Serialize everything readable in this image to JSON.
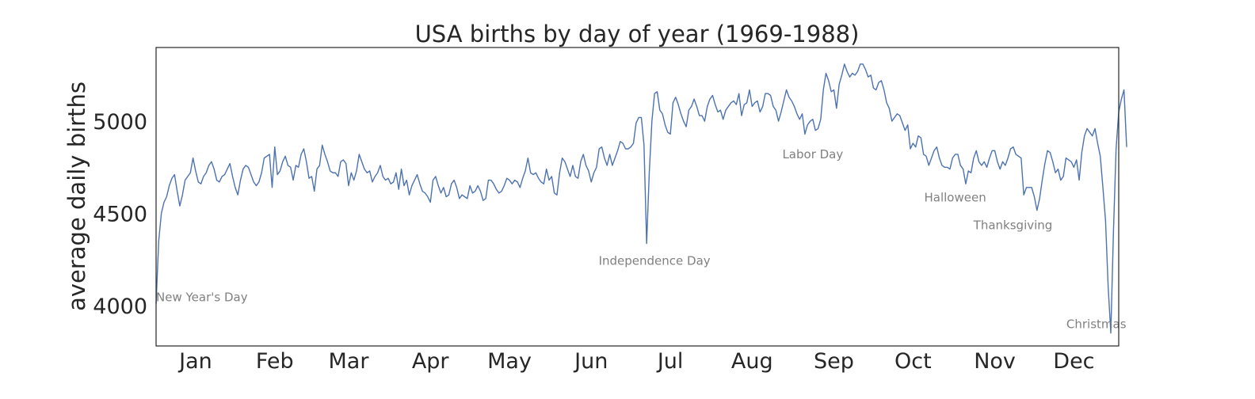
{
  "chart_data": {
    "type": "line",
    "title": "USA births by day of year (1969-1988)",
    "xlabel": "",
    "ylabel": "average daily births",
    "grid": false,
    "legend": "none",
    "colors": {
      "line": "#4c72b0",
      "annotation": "#808080",
      "text": "#262626"
    },
    "xlim": [
      1,
      366
    ],
    "ylim": [
      3780,
      5400
    ],
    "y_ticks": [
      4000,
      4500,
      5000
    ],
    "x_ticks": [
      {
        "label": "Jan",
        "day": 16
      },
      {
        "label": "Feb",
        "day": 46
      },
      {
        "label": "Mar",
        "day": 74
      },
      {
        "label": "Apr",
        "day": 105
      },
      {
        "label": "May",
        "day": 135
      },
      {
        "label": "Jun",
        "day": 166
      },
      {
        "label": "Jul",
        "day": 196
      },
      {
        "label": "Aug",
        "day": 227
      },
      {
        "label": "Sep",
        "day": 258
      },
      {
        "label": "Oct",
        "day": 288
      },
      {
        "label": "Nov",
        "day": 319
      },
      {
        "label": "Dec",
        "day": 349
      }
    ],
    "series": [
      {
        "values": [
          4009,
          4350,
          4500,
          4560,
          4590,
          4650,
          4690,
          4710,
          4620,
          4540,
          4600,
          4680,
          4700,
          4720,
          4800,
          4730,
          4670,
          4660,
          4700,
          4720,
          4760,
          4780,
          4740,
          4680,
          4670,
          4700,
          4710,
          4740,
          4770,
          4700,
          4640,
          4600,
          4680,
          4740,
          4760,
          4750,
          4710,
          4670,
          4650,
          4670,
          4720,
          4800,
          4810,
          4820,
          4640,
          4860,
          4710,
          4730,
          4780,
          4810,
          4760,
          4750,
          4680,
          4760,
          4750,
          4820,
          4850,
          4780,
          4690,
          4700,
          4620,
          4740,
          4760,
          4870,
          4820,
          4780,
          4730,
          4720,
          4720,
          4700,
          4780,
          4790,
          4770,
          4650,
          4720,
          4680,
          4730,
          4820,
          4780,
          4740,
          4720,
          4730,
          4670,
          4700,
          4720,
          4760,
          4700,
          4680,
          4690,
          4660,
          4670,
          4720,
          4630,
          4740,
          4650,
          4680,
          4600,
          4650,
          4680,
          4710,
          4660,
          4620,
          4610,
          4590,
          4560,
          4680,
          4700,
          4650,
          4610,
          4640,
          4590,
          4600,
          4660,
          4680,
          4640,
          4580,
          4600,
          4590,
          4580,
          4650,
          4610,
          4620,
          4650,
          4620,
          4570,
          4580,
          4680,
          4680,
          4660,
          4630,
          4610,
          4620,
          4650,
          4690,
          4680,
          4660,
          4680,
          4670,
          4640,
          4690,
          4730,
          4800,
          4720,
          4710,
          4720,
          4690,
          4670,
          4660,
          4740,
          4680,
          4700,
          4610,
          4600,
          4720,
          4800,
          4780,
          4740,
          4700,
          4760,
          4700,
          4690,
          4780,
          4820,
          4760,
          4730,
          4670,
          4720,
          4750,
          4850,
          4860,
          4800,
          4760,
          4820,
          4760,
          4800,
          4840,
          4890,
          4880,
          4850,
          4850,
          4860,
          4880,
          4990,
          5020,
          5020,
          4870,
          4336,
          4720,
          5000,
          5150,
          5160,
          5060,
          5040,
          4980,
          4940,
          4930,
          5100,
          5130,
          5090,
          5040,
          5000,
          4970,
          5060,
          5080,
          5120,
          5080,
          5030,
          5030,
          5000,
          5080,
          5120,
          5140,
          5090,
          5050,
          5060,
          5010,
          5060,
          5080,
          5100,
          5110,
          5090,
          5150,
          5030,
          5090,
          5100,
          5170,
          5080,
          5100,
          5110,
          5050,
          5080,
          5150,
          5150,
          5140,
          5080,
          5060,
          5000,
          5050,
          5110,
          5170,
          5130,
          5110,
          5080,
          5040,
          5010,
          5040,
          4930,
          4980,
          5000,
          5010,
          4950,
          4960,
          5010,
          5170,
          5260,
          5220,
          5160,
          5170,
          5070,
          5200,
          5250,
          5310,
          5270,
          5240,
          5260,
          5250,
          5270,
          5310,
          5310,
          5280,
          5240,
          5250,
          5180,
          5170,
          5210,
          5220,
          5170,
          5100,
          5070,
          5000,
          5020,
          5040,
          5030,
          4990,
          4950,
          4980,
          4850,
          4880,
          4860,
          4920,
          4910,
          4820,
          4810,
          4760,
          4800,
          4840,
          4860,
          4800,
          4760,
          4750,
          4750,
          4740,
          4800,
          4820,
          4820,
          4760,
          4740,
          4660,
          4730,
          4720,
          4800,
          4840,
          4780,
          4760,
          4780,
          4750,
          4800,
          4840,
          4840,
          4780,
          4740,
          4780,
          4760,
          4800,
          4850,
          4860,
          4820,
          4810,
          4800,
          4600,
          4640,
          4640,
          4640,
          4590,
          4516,
          4580,
          4680,
          4770,
          4840,
          4830,
          4780,
          4720,
          4740,
          4680,
          4700,
          4800,
          4790,
          4780,
          4750,
          4790,
          4680,
          4830,
          4920,
          4960,
          4940,
          4920,
          4960,
          4880,
          4810,
          4640,
          4460,
          4100,
          3850,
          4400,
          4850,
          5050,
          5120,
          5170,
          4860
        ]
      }
    ],
    "annotations": [
      {
        "text": "New Year's Day",
        "x": 1,
        "y": 4009
      },
      {
        "text": "Independence Day",
        "x": 190,
        "y": 4336
      },
      {
        "text": "Labor Day",
        "x": 250,
        "y": 4928
      },
      {
        "text": "Halloween",
        "x": 304,
        "y": 4664
      },
      {
        "text": "Thanksgiving",
        "x": 328,
        "y": 4516
      },
      {
        "text": "Christmas",
        "x": 359,
        "y": 3850
      }
    ]
  }
}
